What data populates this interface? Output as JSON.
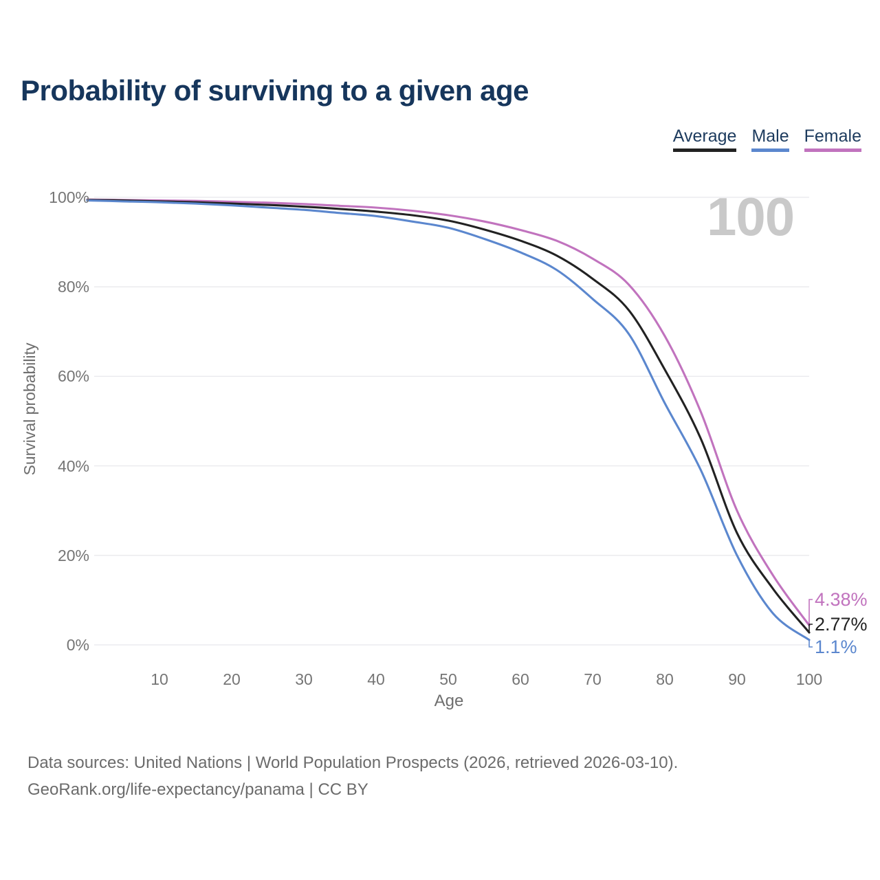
{
  "title": "Probability of surviving to a given age",
  "watermark": "100",
  "footer": {
    "line1": "Data sources: United Nations | World Population Prospects (2026, retrieved 2026-03-10).",
    "line2": "GeoRank.org/life-expectancy/panama | CC BY"
  },
  "colors": {
    "average": "#222222",
    "male": "#5b87ce",
    "female": "#c173be",
    "grid": "#e8e8ec",
    "tick_text": "#757575",
    "title_text": "#16365c",
    "watermark_text": "#c9c9c9"
  },
  "legend": [
    {
      "label": "Average",
      "color": "#222222"
    },
    {
      "label": "Male",
      "color": "#5b87ce"
    },
    {
      "label": "Female",
      "color": "#c173be"
    }
  ],
  "chart_data": {
    "type": "line",
    "title": "Probability of surviving to a given age",
    "xlabel": "Age",
    "ylabel": "Survival probability",
    "xlim": [
      0,
      100
    ],
    "ylim": [
      0,
      100
    ],
    "grid": "horizontal",
    "legend_position": "top-right",
    "x_ticks": [
      10,
      20,
      30,
      40,
      50,
      60,
      70,
      80,
      90,
      100
    ],
    "y_ticks": [
      {
        "value": 0,
        "label": "0%"
      },
      {
        "value": 20,
        "label": "20%"
      },
      {
        "value": 40,
        "label": "40%"
      },
      {
        "value": 60,
        "label": "60%"
      },
      {
        "value": 80,
        "label": "80%"
      },
      {
        "value": 100,
        "label": "100%"
      }
    ],
    "x": [
      0,
      5,
      10,
      15,
      20,
      25,
      30,
      35,
      40,
      45,
      50,
      55,
      60,
      65,
      70,
      75,
      80,
      85,
      90,
      95,
      100
    ],
    "series": [
      {
        "name": "Female",
        "color": "#c173be",
        "values": [
          99.5,
          99.4,
          99.3,
          99.2,
          99.0,
          98.8,
          98.5,
          98.1,
          97.7,
          97.0,
          96.0,
          94.6,
          92.7,
          90.3,
          86.3,
          80.5,
          69.0,
          52.0,
          30.0,
          15.5,
          4.38
        ]
      },
      {
        "name": "Average",
        "color": "#222222",
        "values": [
          99.4,
          99.3,
          99.1,
          98.9,
          98.6,
          98.3,
          97.9,
          97.4,
          96.8,
          96.0,
          94.8,
          92.8,
          90.3,
          87.0,
          81.8,
          74.8,
          61.5,
          46.0,
          25.0,
          12.5,
          2.77
        ]
      },
      {
        "name": "Male",
        "color": "#5b87ce",
        "values": [
          99.3,
          99.1,
          98.9,
          98.6,
          98.2,
          97.7,
          97.2,
          96.5,
          95.8,
          94.6,
          93.2,
          90.7,
          87.7,
          83.8,
          77.3,
          69.5,
          54.0,
          39.0,
          20.0,
          7.0,
          1.1
        ]
      }
    ],
    "end_labels": [
      {
        "text": "4.38%",
        "value": 4.38,
        "series": "Female",
        "color": "#c173be"
      },
      {
        "text": "2.77%",
        "value": 2.77,
        "series": "Average",
        "color": "#222222"
      },
      {
        "text": "1.1%",
        "value": 1.1,
        "series": "Male",
        "color": "#5b87ce"
      }
    ]
  }
}
